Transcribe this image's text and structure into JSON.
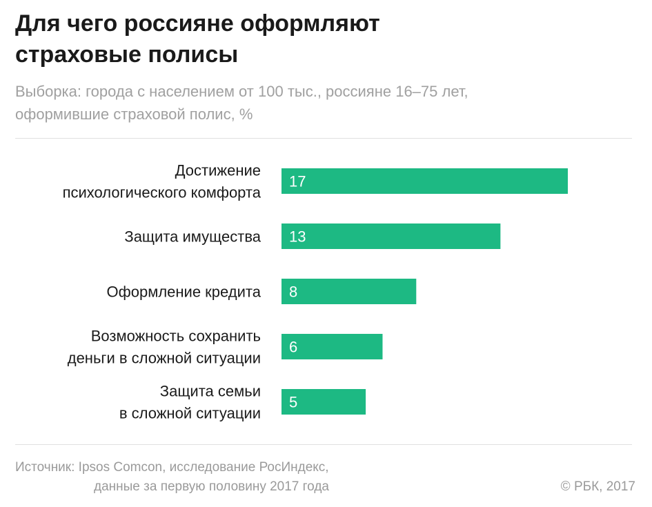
{
  "header": {
    "title_lines": [
      "Для чего россияне оформляют",
      "страховые полисы"
    ],
    "subtitle_lines": [
      "Выборка: города с населением от 100 тыс., россияне 16–75 лет,",
      "оформившие страховой полис, %"
    ]
  },
  "footer": {
    "source_lines": [
      "Источник: Ipsos Comcon, исследование РосИндекс,",
      "данные за первую половину 2017 года"
    ],
    "copyright": "© РБК, 2017"
  },
  "colors": {
    "bar": "#1db983"
  },
  "chart_data": {
    "type": "bar",
    "orientation": "horizontal",
    "categories": [
      [
        "Достижение",
        "психологического комфорта"
      ],
      [
        "Защита имущества"
      ],
      [
        "Оформление кредита"
      ],
      [
        "Возможность сохранить",
        "деньги в сложной ситуации"
      ],
      [
        "Защита семьи",
        "в сложной ситуации"
      ]
    ],
    "values": [
      17,
      13,
      8,
      6,
      5
    ],
    "data_labels": [
      "17",
      "13",
      "8",
      "6",
      "5"
    ],
    "grid": false,
    "legend": "none"
  }
}
